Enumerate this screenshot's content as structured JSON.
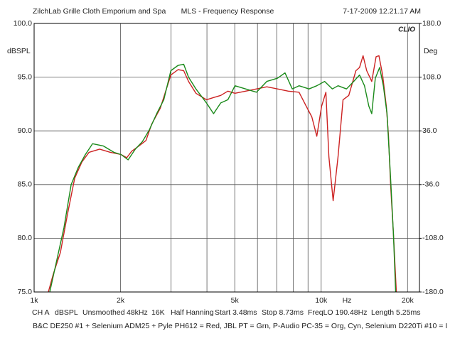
{
  "chart_data": {
    "type": "line",
    "header": [
      "ZilchLab Grille Cloth Emporium and Spa",
      "MLS - Frequency Response",
      "7-17-2009 12.21.17 AM"
    ],
    "logo": "CLIO",
    "ylabel": "dBSPL",
    "y2label": "Deg",
    "xlabel": "Hz",
    "log_x": true,
    "grid": true,
    "xlim": [
      1000,
      22000
    ],
    "xticks": [
      {
        "value": 1000,
        "label": "1k"
      },
      {
        "value": 2000,
        "label": "2k"
      },
      {
        "value": 5000,
        "label": "5k"
      },
      {
        "value": 10000,
        "label": "10k"
      },
      {
        "value": 20000,
        "label": "20k"
      }
    ],
    "x_minor_ticks": [
      3000,
      4000,
      6000,
      7000,
      8000,
      9000
    ],
    "ylim": [
      75,
      100
    ],
    "yticks": [
      {
        "value": 75,
        "label": "75.0"
      },
      {
        "value": 80,
        "label": "80.0"
      },
      {
        "value": 85,
        "label": "85.0"
      },
      {
        "value": 90,
        "label": "90.0"
      },
      {
        "value": 95,
        "label": "95.0"
      },
      {
        "value": 100,
        "label": "100.0"
      }
    ],
    "y2lim": [
      -180,
      180
    ],
    "y2ticks": [
      {
        "value": -180,
        "label": "-180.0"
      },
      {
        "value": -108,
        "label": "-108.0"
      },
      {
        "value": -36,
        "label": "-36.0"
      },
      {
        "value": 36,
        "label": "36.0"
      },
      {
        "value": 108,
        "label": "108.0"
      },
      {
        "value": 180,
        "label": "180.0"
      }
    ],
    "status": [
      "CH A",
      "dBSPL",
      "Unsmoothed",
      "48kHz",
      "16K",
      "Half Hanning",
      "Start 3.48ms",
      "Stop 8.73ms",
      "FreqLO 190.48Hz",
      "Length 5.25ms"
    ],
    "note": "B&C DE250 #1 + Selenium ADM25 + Pyle PH612 = Red, JBL PT = Grn, P-Audio PC-35 = Org, Cyn, Selenium D220Ti #10 = I",
    "series": [
      {
        "color": "#cc2222",
        "x": [
          1121,
          1167,
          1235,
          1308,
          1385,
          1467,
          1553,
          1692,
          1843,
          2007,
          2103,
          2187,
          2318,
          2452,
          2566,
          2750,
          2995,
          3174,
          3320,
          3452,
          3661,
          3984,
          4219,
          4468,
          4731,
          5009,
          5455,
          5953,
          6467,
          7049,
          7683,
          8372,
          8871,
          9279,
          9657,
          10040,
          10389,
          10640,
          11006,
          11452,
          11916,
          12480,
          13216,
          13602,
          13998,
          14407,
          15004,
          15536,
          15898,
          16374,
          16863,
          17153,
          17453,
          17859,
          18278
        ],
        "values": [
          75.0,
          76.7,
          78.7,
          82.3,
          85.6,
          87.1,
          88.0,
          88.3,
          88.0,
          87.8,
          87.5,
          88.1,
          88.6,
          89.1,
          90.6,
          92.1,
          95.2,
          95.7,
          95.6,
          94.6,
          93.5,
          92.9,
          93.1,
          93.3,
          93.7,
          93.5,
          93.7,
          93.9,
          94.1,
          93.9,
          93.7,
          93.6,
          92.3,
          91.3,
          89.5,
          92.3,
          93.6,
          87.6,
          83.5,
          87.6,
          92.9,
          93.3,
          95.6,
          95.9,
          97.0,
          95.6,
          94.6,
          96.9,
          97.0,
          95.2,
          92.3,
          89.6,
          85.0,
          80.4,
          75.0
        ]
      },
      {
        "color": "#1a8a1a",
        "x": [
          1134,
          1200,
          1271,
          1346,
          1425,
          1509,
          1598,
          1741,
          1896,
          2007,
          2125,
          2253,
          2383,
          2521,
          2673,
          2830,
          2995,
          3174,
          3320,
          3452,
          3661,
          3984,
          4219,
          4468,
          4731,
          5009,
          5455,
          5953,
          6467,
          7049,
          7484,
          7929,
          8372,
          9072,
          9657,
          10283,
          10937,
          11452,
          12256,
          12979,
          13602,
          14159,
          14657,
          15004,
          15443,
          15989,
          16465,
          16959,
          17453,
          17859,
          18174
        ],
        "values": [
          75.0,
          78.0,
          81.0,
          85.0,
          86.6,
          87.8,
          88.8,
          88.6,
          88.0,
          87.8,
          87.3,
          88.3,
          89.0,
          90.1,
          91.6,
          92.9,
          95.6,
          96.1,
          96.2,
          95.0,
          93.9,
          92.6,
          91.6,
          92.6,
          92.9,
          94.2,
          93.9,
          93.6,
          94.6,
          94.9,
          95.4,
          93.9,
          94.2,
          93.9,
          94.2,
          94.6,
          93.9,
          94.2,
          93.9,
          94.6,
          95.2,
          94.2,
          92.3,
          91.6,
          94.9,
          95.9,
          94.2,
          91.6,
          85.6,
          80.4,
          75.0
        ]
      }
    ]
  }
}
